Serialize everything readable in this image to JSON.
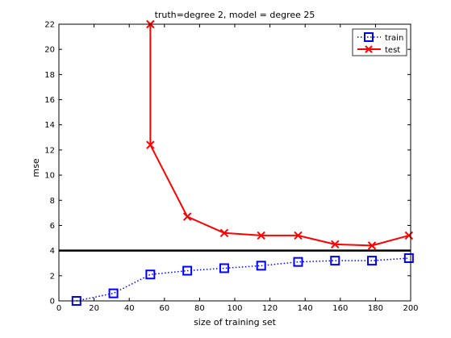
{
  "chart_data": {
    "type": "line",
    "title": "truth=degree 2, model = degree 25",
    "xlabel": "size of training set",
    "ylabel": "mse",
    "xlim": [
      0,
      200
    ],
    "ylim": [
      0,
      22
    ],
    "xticks": [
      0,
      20,
      40,
      60,
      80,
      100,
      120,
      140,
      160,
      180,
      200
    ],
    "yticks": [
      0,
      2,
      4,
      6,
      8,
      10,
      12,
      14,
      16,
      18,
      20,
      22
    ],
    "grid": false,
    "legend_position": "top-right",
    "series": [
      {
        "name": "train",
        "color": "#0000ff",
        "line_style": "dotted",
        "marker": "square",
        "x": [
          10,
          31,
          52,
          73,
          94,
          115,
          136,
          157,
          178,
          199
        ],
        "y": [
          0.0,
          0.6,
          2.1,
          2.4,
          2.6,
          2.8,
          3.1,
          3.2,
          3.2,
          3.4
        ]
      },
      {
        "name": "test",
        "color": "#ff0000",
        "line_style": "solid",
        "marker": "x",
        "x": [
          52,
          52,
          73,
          94,
          115,
          136,
          157,
          178,
          199
        ],
        "y": [
          22,
          12.4,
          6.7,
          5.4,
          5.2,
          5.2,
          4.5,
          4.4,
          5.2
        ]
      }
    ],
    "reference_line": {
      "y": 4,
      "color": "#000000"
    }
  }
}
